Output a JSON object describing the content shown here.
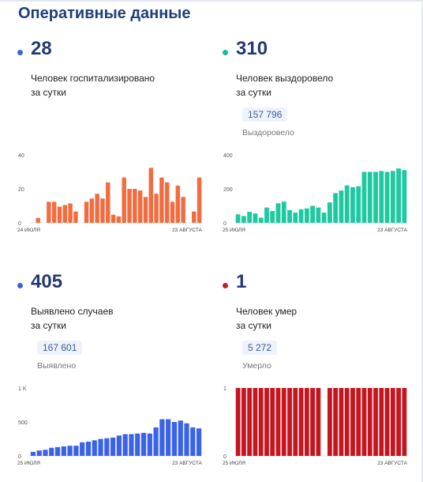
{
  "title": "Оперативные данные",
  "cards": [
    {
      "color": "#3a63d9",
      "bar_color": "#f26c3f",
      "value": "28",
      "line1": "Человек госпитализировано",
      "line2": "за сутки",
      "chart_data": {
        "type": "bar",
        "x_start_label": "24 ИЮЛЯ",
        "x_end_label": "23 АВГУСТА",
        "y_ticks": [
          "0",
          "20",
          "40"
        ],
        "ylim": [
          0,
          42
        ],
        "values": [
          0,
          3,
          0,
          13,
          13,
          10,
          11,
          12,
          7,
          0,
          13,
          15,
          18,
          15,
          25,
          5,
          4,
          28,
          21,
          21,
          20,
          16,
          34,
          18,
          28,
          25,
          13,
          23,
          16,
          0,
          7,
          28
        ]
      }
    },
    {
      "color": "#1ab99a",
      "bar_color": "#1fc9a0",
      "value": "310",
      "line1": "Человек выздоровело",
      "line2": "за сутки",
      "total": "157 796",
      "total_label": "Выздоровело",
      "chart_data": {
        "type": "bar",
        "x_start_label": "25 ИЮЛЯ",
        "x_end_label": "23 АВГУСТА",
        "y_ticks": [
          "0",
          "200",
          "400"
        ],
        "ylim": [
          0,
          400
        ],
        "values": [
          50,
          40,
          65,
          55,
          30,
          90,
          70,
          115,
          125,
          75,
          60,
          80,
          85,
          100,
          90,
          60,
          120,
          175,
          190,
          220,
          210,
          215,
          300,
          300,
          300,
          305,
          300,
          305,
          320,
          310
        ]
      }
    },
    {
      "color": "#3a63d9",
      "bar_color": "#3a63e8",
      "value": "405",
      "line1": "Выявлено случаев",
      "line2": "за сутки",
      "total": "167 601",
      "total_label": "Выявлено",
      "chart_data": {
        "type": "bar",
        "x_start_label": "25 ИЮЛЯ",
        "x_end_label": "23 АВГУСТА",
        "y_ticks": [
          "0",
          "500",
          "1 K"
        ],
        "ylim": [
          0,
          1000
        ],
        "values": [
          60,
          80,
          90,
          120,
          130,
          140,
          150,
          150,
          200,
          210,
          230,
          250,
          260,
          270,
          300,
          320,
          320,
          330,
          340,
          330,
          420,
          540,
          540,
          500,
          520,
          480,
          420,
          405
        ]
      }
    },
    {
      "color": "#c5202a",
      "bar_color": "#c5151f",
      "value": "1",
      "line1": "Человек умер",
      "line2": "за сутки",
      "total": "5 272",
      "total_label": "Умерло",
      "chart_data": {
        "type": "bar",
        "x_start_label": "25 ИЮЛЯ",
        "x_end_label": "23 АВГУСТА",
        "y_ticks": [
          "0",
          "1"
        ],
        "ylim": [
          0,
          1
        ],
        "values": [
          1,
          1,
          1,
          1,
          1,
          1,
          1,
          1,
          1,
          1,
          1,
          1,
          1,
          1,
          1,
          0,
          1,
          1,
          1,
          1,
          1,
          1,
          1,
          1,
          1,
          1,
          1,
          1,
          1,
          1
        ]
      }
    }
  ]
}
